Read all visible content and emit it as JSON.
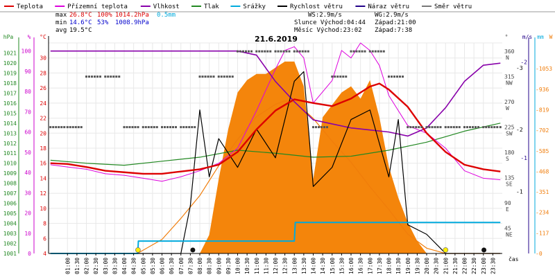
{
  "chart_data": {
    "type": "line",
    "title": "21.6.2019",
    "legend": [
      {
        "label": "Teplota",
        "color": "#dd0000"
      },
      {
        "label": "Přízemní teplota",
        "color": "#dd00dd"
      },
      {
        "label": "Vlhkost",
        "color": "#8800aa"
      },
      {
        "label": "Tlak",
        "color": "#228822"
      },
      {
        "label": "Srážky",
        "color": "#00aadd"
      },
      {
        "label": "Rychlost větru",
        "color": "#000000"
      },
      {
        "label": "Náraz větru",
        "color": "#220088"
      },
      {
        "label": "Směr větru",
        "color": "#777777"
      }
    ],
    "stats": {
      "max_label": "max",
      "max_temp": "26.8°C",
      "max_hum": "100%",
      "max_press": "1014.2hPa",
      "rain": "0.5mm",
      "min_label": "min",
      "min_temp": "14.6°C",
      "min_hum": "53%",
      "min_press": "1008.9hPa",
      "avg_label": "avg",
      "avg_temp": "19.5°C",
      "ws": "WS:2.9m/s",
      "wg": "WG:2.9m/s",
      "sunrise": "Slunce Východ:04:44",
      "sunset": "Západ:21:00",
      "moonrise": "Měsíc  Východ:23:02",
      "moonset": "Západ:7:38"
    },
    "axis_units": {
      "hpa": "hPa",
      "pct": "%",
      "temp": "°C",
      "deg": "°",
      "ms": "m/s",
      "mm": "mm",
      "w": "W"
    },
    "xlabel": "čas",
    "hpa_ticks": [
      "1021",
      "1020",
      "1019",
      "1018",
      "1017",
      "1016",
      "1015",
      "1014",
      "1013",
      "1012",
      "1011",
      "1010",
      "1009",
      "1008",
      "1007",
      "1006",
      "1005",
      "1004",
      "1003",
      "1002",
      "1001"
    ],
    "pct_ticks": [
      "100",
      "90",
      "80",
      "70",
      "60",
      "50",
      "40",
      "30",
      "20",
      "10",
      "0"
    ],
    "temp_ticks": [
      "30",
      "28",
      "26",
      "24",
      "22",
      "20",
      "18",
      "16",
      "14",
      "12",
      "10",
      "8",
      "6",
      "4"
    ],
    "dir_ticks": [
      {
        "deg": "360",
        "dir": "N"
      },
      {
        "deg": "315",
        "dir": "NW"
      },
      {
        "deg": "270",
        "dir": "W"
      },
      {
        "deg": "225",
        "dir": "SW"
      },
      {
        "deg": "180",
        "dir": "S"
      },
      {
        "deg": "135",
        "dir": "SE"
      },
      {
        "deg": "90",
        "dir": "E"
      },
      {
        "deg": "45",
        "dir": "NE"
      }
    ],
    "ms_ticks": [
      "2",
      "1"
    ],
    "mm_ticks": [
      "3",
      "2",
      "1"
    ],
    "w_ticks": [
      "1053",
      "936",
      "819",
      "702",
      "585",
      "468",
      "351",
      "234",
      "117",
      "0"
    ],
    "x_ticks": [
      "01:00",
      "01:30",
      "02:00",
      "02:30",
      "03:00",
      "03:30",
      "04:00",
      "04:30",
      "05:00",
      "05:30",
      "06:00",
      "06:30",
      "07:00",
      "07:30",
      "08:00",
      "08:30",
      "09:00",
      "09:30",
      "10:00",
      "10:30",
      "11:00",
      "11:30",
      "12:00",
      "12:30",
      "13:00",
      "13:30",
      "14:00",
      "14:30",
      "15:00",
      "15:30",
      "16:00",
      "16:30",
      "17:00",
      "17:30",
      "18:00",
      "18:30",
      "19:00",
      "19:30",
      "20:00",
      "20:30",
      "21:00",
      "21:30",
      "22:00",
      "22:30",
      "23:00",
      "23:30"
    ],
    "series": [
      {
        "name": "Teplota",
        "x": [
          0.1,
          1,
          2,
          3,
          4,
          5,
          6,
          7,
          8,
          9,
          10,
          11,
          12,
          13,
          14,
          15,
          16,
          17,
          17.5,
          18,
          19,
          20,
          21,
          22,
          23,
          23.9
        ],
        "y": [
          16,
          15.9,
          15.5,
          15,
          14.8,
          14.6,
          14.6,
          14.9,
          15.2,
          15.8,
          17.5,
          20.5,
          23,
          24.5,
          24,
          23.6,
          24.6,
          26.2,
          26.6,
          25.8,
          23.5,
          20,
          17.5,
          15.8,
          15.2,
          14.9
        ]
      },
      {
        "name": "Přízemní teplota",
        "x": [
          0.1,
          1,
          2,
          3,
          4,
          5,
          6,
          7,
          8,
          9,
          10,
          11,
          12,
          12.5,
          13,
          13.5,
          14,
          15,
          15.5,
          16,
          16.5,
          17,
          17.5,
          18,
          19,
          20,
          21,
          22,
          23,
          23.9
        ],
        "y": [
          15.8,
          15.5,
          15.2,
          14.6,
          14.4,
          14,
          13.6,
          14.2,
          15,
          16,
          18,
          23,
          28.5,
          31,
          31.5,
          30,
          24,
          27,
          31,
          30,
          32,
          31,
          29,
          25,
          21,
          20,
          18,
          15,
          14,
          13.8
        ]
      },
      {
        "name": "Vlhkost",
        "x": [
          0.1,
          6,
          8,
          9,
          10,
          11,
          12,
          13,
          14,
          15,
          16,
          17,
          18,
          19,
          20,
          21,
          22,
          23,
          23.9
        ],
        "y": [
          100,
          100,
          100,
          100,
          100,
          98,
          85,
          75,
          66,
          64,
          62,
          61,
          60,
          58,
          62,
          72,
          85,
          93,
          94
        ]
      },
      {
        "name": "Tlak",
        "x": [
          0.1,
          2,
          4,
          6,
          8,
          10,
          12,
          14,
          16,
          18,
          20,
          22,
          23.9
        ],
        "y": [
          1010.3,
          1010.0,
          1009.8,
          1010.2,
          1010.6,
          1011.3,
          1011.0,
          1010.6,
          1010.7,
          1011.3,
          1012.1,
          1013.2,
          1014.0
        ]
      },
      {
        "name": "Srážky",
        "x": [
          0.1,
          4.72,
          4.75,
          13.0,
          13.05,
          13.9,
          14.0,
          16.0,
          16.1,
          23.9
        ],
        "y": [
          0,
          0,
          0.2,
          0.2,
          0.5,
          0.5,
          0.5,
          0.5,
          0.5,
          0.5
        ]
      },
      {
        "name": "Rychlost větru",
        "x": [
          0.1,
          7,
          7.5,
          8,
          8.5,
          9,
          10,
          11,
          12,
          13,
          13.5,
          14,
          15,
          16,
          17,
          18,
          18.5,
          19,
          20,
          21,
          23.9
        ],
        "y": [
          0,
          0,
          0.5,
          1.5,
          0.8,
          1.2,
          0.9,
          1.3,
          1.0,
          1.8,
          1.9,
          0.7,
          0.9,
          1.4,
          1.5,
          0.8,
          1.4,
          0.3,
          0.2,
          0,
          0
        ]
      },
      {
        "name": "Náraz větru",
        "x": [
          0.1,
          6,
          7,
          8,
          9,
          10,
          11,
          12,
          13,
          14,
          15,
          16,
          17,
          18,
          19,
          20,
          21,
          22,
          23,
          23.9
        ],
        "y": [
          100,
          100,
          100,
          100,
          100,
          98,
          88,
          80,
          72,
          66,
          63,
          62,
          61,
          60,
          58,
          64,
          74,
          86,
          93,
          94
        ]
      },
      {
        "name": "Směr větru",
        "x": [
          0.1,
          1,
          2,
          3,
          4,
          5,
          6,
          7,
          8,
          9,
          10,
          11,
          12,
          13,
          14,
          15,
          16,
          17,
          18,
          19,
          20,
          21,
          22,
          23,
          23.9
        ],
        "y": [
          225,
          225,
          315,
          315,
          225,
          225,
          225,
          225,
          315,
          315,
          360,
          360,
          360,
          360,
          225,
          315,
          360,
          360,
          315,
          225,
          225,
          225,
          225,
          225,
          225
        ]
      },
      {
        "name": "Sluneční záření",
        "x": [
          0.1,
          4.7,
          6,
          7,
          8,
          9,
          10,
          11,
          12,
          12.5,
          13,
          13.5,
          14,
          15,
          16,
          17,
          18,
          19,
          20,
          21,
          21,
          23.9
        ],
        "y": [
          0,
          0,
          80,
          200,
          330,
          500,
          650,
          780,
          850,
          870,
          860,
          820,
          770,
          640,
          520,
          380,
          250,
          110,
          30,
          0,
          0,
          0
        ]
      }
    ],
    "radiation_bars": {
      "name": "Srážky/Záření plocha",
      "x": [
        8.0,
        8.5,
        9,
        9.5,
        10,
        10.5,
        11,
        11.5,
        12,
        12.5,
        13,
        13.5,
        14,
        14.5,
        15,
        15.5,
        16,
        16.5,
        17,
        17.5,
        18,
        18.5,
        19,
        19.5,
        20
      ],
      "y": [
        0,
        0.3,
        1.2,
        2.0,
        2.6,
        2.8,
        2.9,
        2.9,
        3.0,
        3.1,
        3.1,
        2.7,
        1.2,
        2.2,
        2.4,
        2.6,
        2.7,
        2.5,
        2.8,
        2.2,
        1.4,
        0.9,
        0.5,
        0.2,
        0
      ]
    },
    "ylim_temp": [
      4,
      32
    ],
    "ylim_pct": [
      0,
      104
    ],
    "ylim_hpa": [
      1001,
      1022
    ],
    "ylim_deg": [
      0,
      375
    ],
    "ylim_ms": [
      0,
      2.2
    ],
    "ylim_mm": [
      0,
      3.4
    ],
    "ylim_w": [
      0,
      1200
    ],
    "xlim": [
      0,
      24
    ]
  }
}
